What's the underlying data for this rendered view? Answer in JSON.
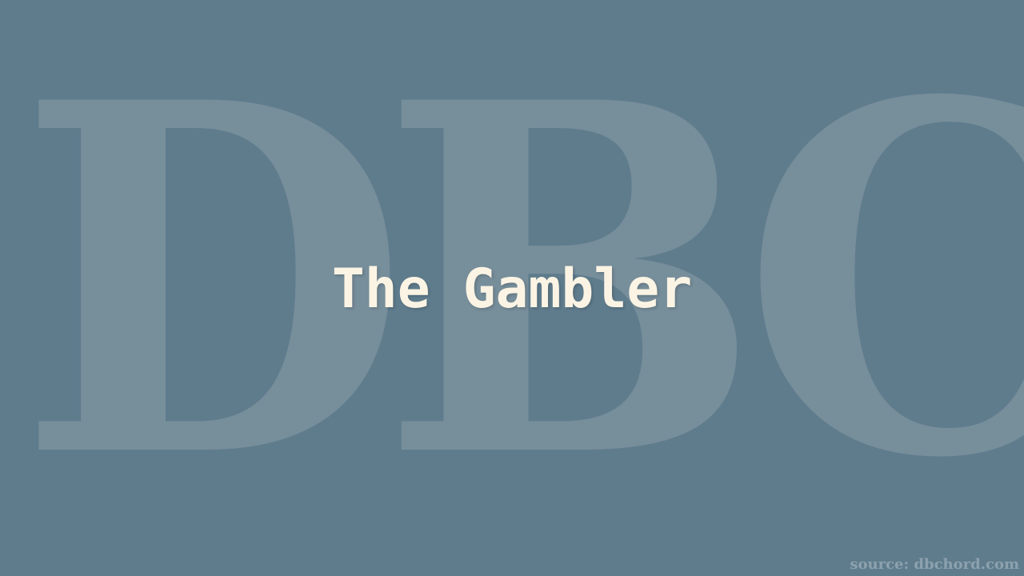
{
  "background": {
    "color": "#5f7c8d",
    "watermark_text": "DBC",
    "watermark_color": "#778e9b"
  },
  "title": {
    "text": "The Gambler",
    "color": "#fbf4e4"
  },
  "source": {
    "text": "source: dbchord.com",
    "color": "#8da2ae"
  }
}
